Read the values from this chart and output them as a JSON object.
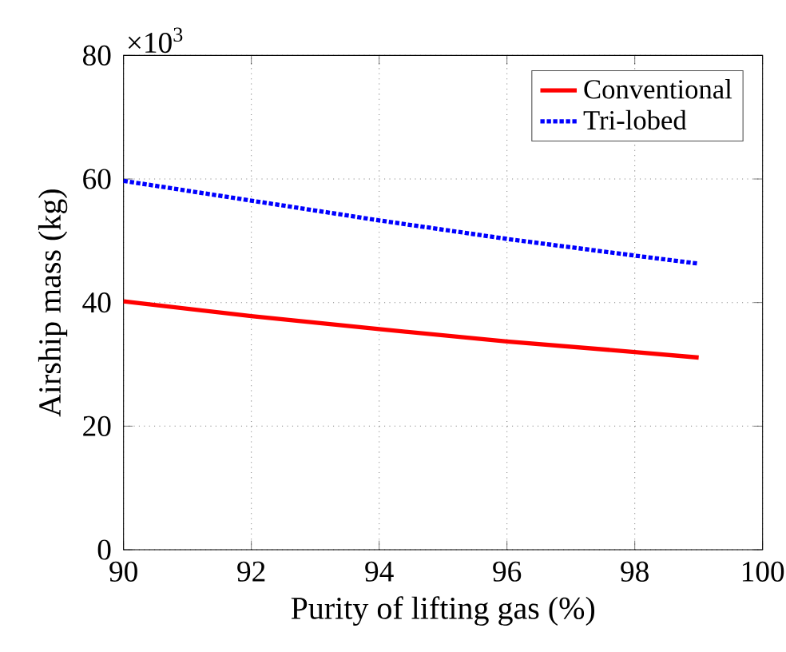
{
  "chart_data": {
    "type": "line",
    "xlabel": "Purity of lifting gas (%)",
    "ylabel": "Airship mass (kg)",
    "annotations": [
      "×10$^{3}$"
    ],
    "x": [
      90,
      92,
      94,
      96,
      98,
      99
    ],
    "series": [
      {
        "name": "Conventional",
        "color": "#ff0000",
        "line_style": "solid",
        "values": [
          40.2,
          37.8,
          35.7,
          33.7,
          32.0,
          31.1
        ]
      },
      {
        "name": "Tri-lobed",
        "color": "#0000ff",
        "line_style": "dotted",
        "values": [
          59.7,
          56.5,
          53.3,
          50.3,
          47.6,
          46.3
        ]
      }
    ],
    "xlim": [
      90,
      100
    ],
    "ylim": [
      0,
      80
    ],
    "xticks": [
      90,
      92,
      94,
      96,
      98,
      100
    ],
    "yticks": [
      0,
      20,
      40,
      60,
      80
    ],
    "grid": true,
    "legend": "top right",
    "marker": "none"
  }
}
